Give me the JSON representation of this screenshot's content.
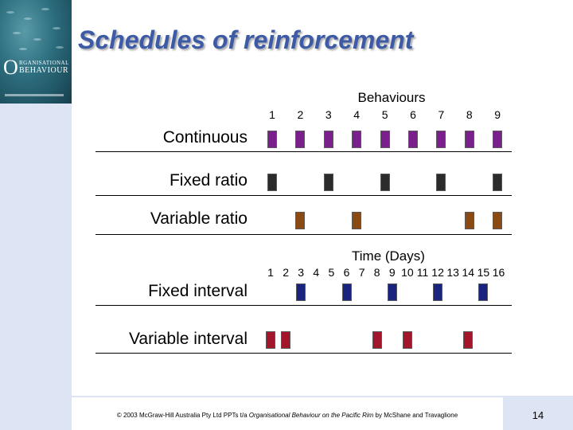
{
  "slide": {
    "title": "Schedules of reinforcement",
    "cover": {
      "logo_letter": "O",
      "line1": "RGANISATIONAL",
      "line2": "BEHAVIOUR"
    },
    "footer_prefix": "© 2003 McGraw-Hill Australia Pty Ltd PPTs t/a ",
    "footer_book": "Organisational Behaviour on the Pacific Rim",
    "footer_suffix": " by McShane and Travaglione",
    "page_number": "14"
  },
  "chart_data": [
    {
      "type": "timeline",
      "axis_title": "Behaviours",
      "ticks": [
        "1",
        "2",
        "3",
        "4",
        "5",
        "6",
        "7",
        "8",
        "9"
      ],
      "rows": [
        {
          "label": "Continuous",
          "color": "#7a1f8c",
          "marks": [
            1,
            2,
            3,
            4,
            5,
            6,
            7,
            8,
            9
          ]
        },
        {
          "label": "Fixed ratio",
          "color": "#2b2b2b",
          "marks": [
            1,
            3,
            5,
            7,
            9
          ]
        },
        {
          "label": "Variable ratio",
          "color": "#8a4a12",
          "marks": [
            2,
            4,
            8,
            9
          ]
        }
      ]
    },
    {
      "type": "timeline",
      "axis_title": "Time (Days)",
      "ticks": [
        "1",
        "2",
        "3",
        "4",
        "5",
        "6",
        "7",
        "8",
        "9",
        "10",
        "11",
        "12",
        "13",
        "14",
        "15",
        "16"
      ],
      "rows": [
        {
          "label": "Fixed interval",
          "color": "#1a237e",
          "marks": [
            3,
            6,
            9,
            12,
            15
          ]
        },
        {
          "label": "Variable interval",
          "color": "#a3152a",
          "marks": [
            1,
            2,
            8,
            10,
            14
          ]
        }
      ]
    }
  ]
}
